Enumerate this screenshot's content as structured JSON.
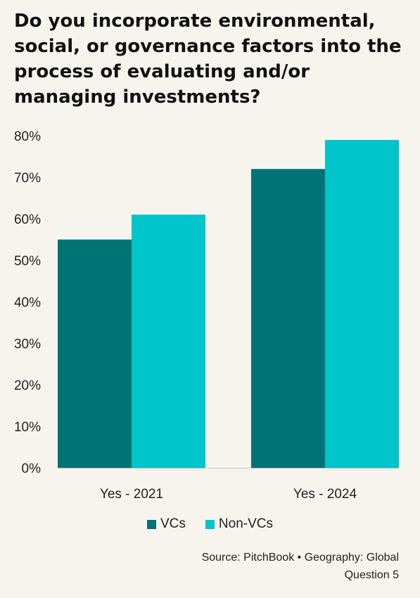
{
  "chart_data": {
    "type": "bar",
    "title": "Do you incorporate environmental, social, or governance factors into the process of evaluating and/or managing investments?",
    "categories": [
      "Yes - 2021",
      "Yes - 2024"
    ],
    "series": [
      {
        "name": "VCs",
        "values": [
          55,
          72
        ],
        "color": "#007374"
      },
      {
        "name": "Non-VCs",
        "values": [
          61,
          79
        ],
        "color": "#00c5cb"
      }
    ],
    "ylim": [
      0,
      80
    ],
    "yticks": [
      "0%",
      "10%",
      "20%",
      "30%",
      "40%",
      "50%",
      "60%",
      "70%",
      "80%"
    ],
    "grid": false,
    "legend": "bottom-center"
  },
  "footer": {
    "source": "Source: PitchBook  •  Geography: Global",
    "question": "Question 5"
  }
}
